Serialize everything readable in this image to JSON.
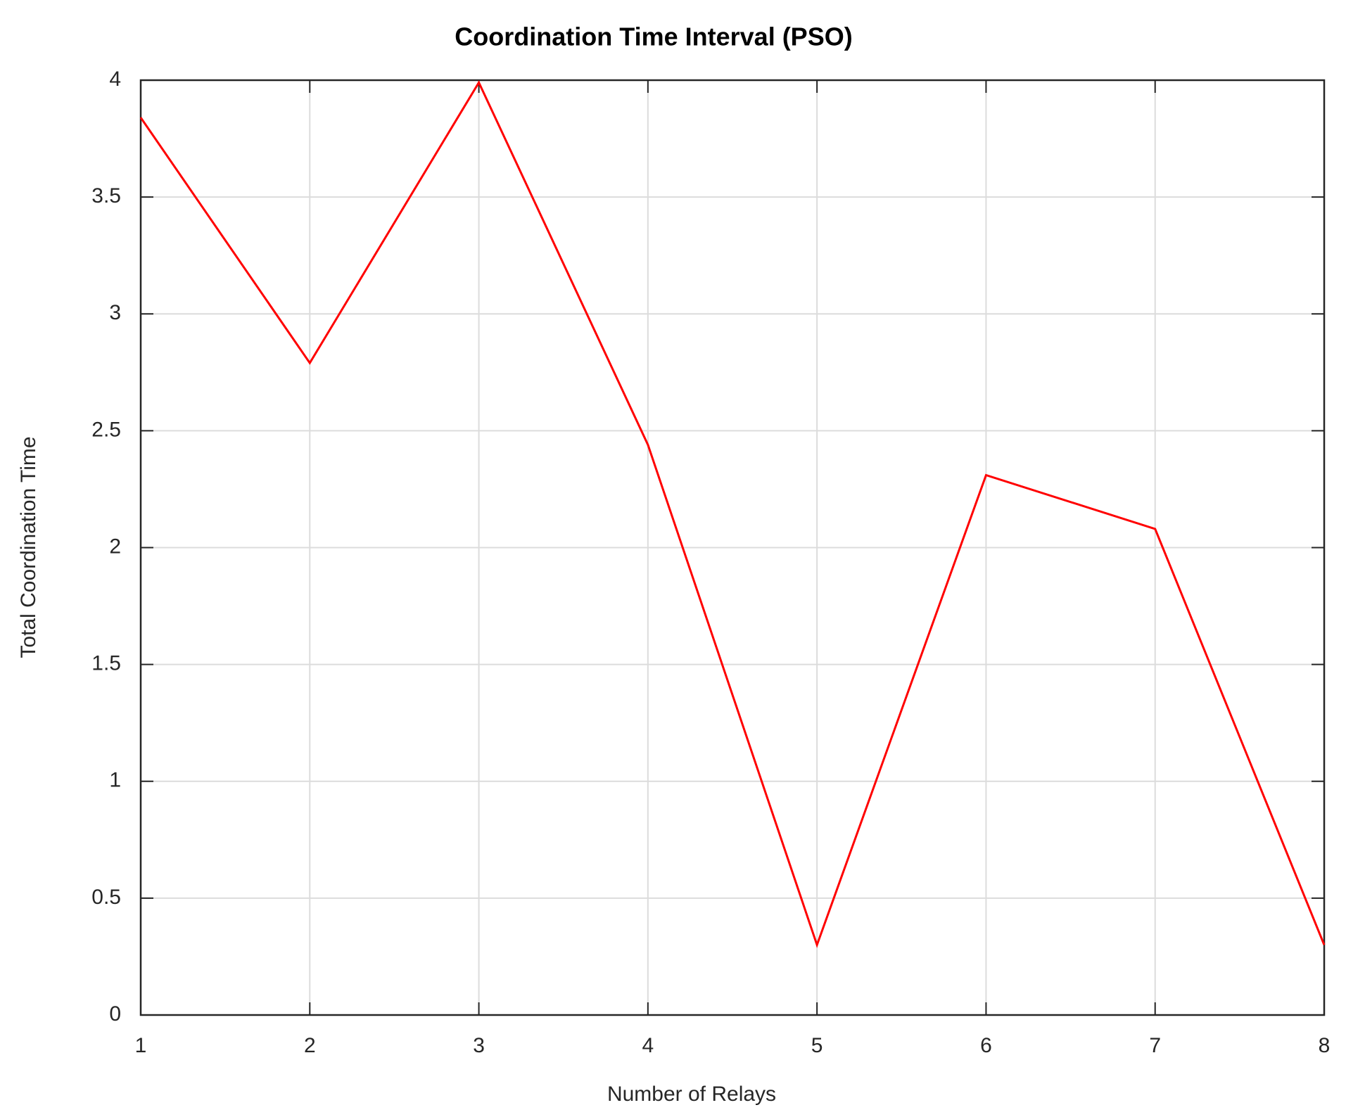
{
  "chart_data": {
    "type": "line",
    "title": "Coordination Time Interval (PSO)",
    "xlabel": "Number of Relays",
    "ylabel": "Total Coordination Time",
    "x": [
      1,
      2,
      3,
      4,
      5,
      6,
      7,
      8
    ],
    "series": [
      {
        "name": "PSO",
        "color": "#ff0000",
        "values": [
          3.84,
          2.79,
          3.99,
          2.44,
          0.3,
          2.31,
          2.08,
          0.3
        ]
      }
    ],
    "xlim": [
      1,
      8
    ],
    "xticks": [
      1,
      2,
      3,
      4,
      5,
      6,
      7,
      8
    ],
    "ylim": [
      0,
      4
    ],
    "yticks": [
      0,
      0.5,
      1,
      1.5,
      2,
      2.5,
      3,
      3.5,
      4
    ],
    "grid": true
  }
}
